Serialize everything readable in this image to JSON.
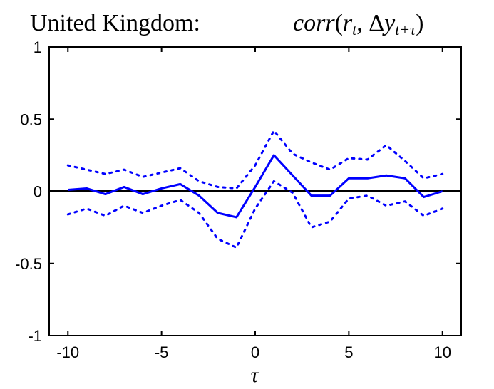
{
  "chart_data": {
    "type": "line",
    "title": {
      "prefix": "United Kingdom:",
      "math_func": "corr",
      "math_r": "r",
      "math_r_sub": "t",
      "math_delta": "Δ",
      "math_y": "y",
      "math_y_sub": "t+τ"
    },
    "xlabel": "τ",
    "ylabel": "",
    "xlim": [
      -11,
      11
    ],
    "ylim": [
      -1,
      1
    ],
    "xticks": [
      -10,
      -5,
      0,
      5,
      10
    ],
    "xtick_labels": [
      "-10",
      "-5",
      "0",
      "5",
      "10"
    ],
    "yticks": [
      -1,
      -0.5,
      0,
      0.5,
      1
    ],
    "ytick_labels": [
      "-1",
      "-0.5",
      "0",
      "0.5",
      "1"
    ],
    "grid": false,
    "zero_line": 0,
    "x": [
      -10,
      -9,
      -8,
      -7,
      -6,
      -5,
      -4,
      -3,
      -2,
      -1,
      0,
      1,
      2,
      3,
      4,
      5,
      6,
      7,
      8,
      9,
      10
    ],
    "series": [
      {
        "style": "solid",
        "color": "#0000ff",
        "values": [
          0.01,
          0.02,
          -0.02,
          0.03,
          -0.02,
          0.02,
          0.05,
          -0.03,
          -0.15,
          -0.18,
          0.03,
          0.25,
          0.11,
          -0.03,
          -0.03,
          0.09,
          0.09,
          0.11,
          0.09,
          -0.04,
          0.0
        ]
      },
      {
        "style": "dotted",
        "color": "#0000ff",
        "values": [
          0.18,
          0.15,
          0.12,
          0.15,
          0.1,
          0.13,
          0.16,
          0.07,
          0.03,
          0.02,
          0.18,
          0.42,
          0.26,
          0.2,
          0.15,
          0.23,
          0.22,
          0.32,
          0.21,
          0.09,
          0.12
        ]
      },
      {
        "style": "dotted",
        "color": "#0000ff",
        "values": [
          -0.16,
          -0.12,
          -0.17,
          -0.1,
          -0.15,
          -0.1,
          -0.06,
          -0.15,
          -0.33,
          -0.39,
          -0.12,
          0.07,
          -0.01,
          -0.25,
          -0.21,
          -0.05,
          -0.03,
          -0.1,
          -0.07,
          -0.17,
          -0.12
        ]
      }
    ],
    "colors": {
      "axis": "#000000",
      "zero_line": "#000000",
      "series": "#0000ff"
    }
  }
}
